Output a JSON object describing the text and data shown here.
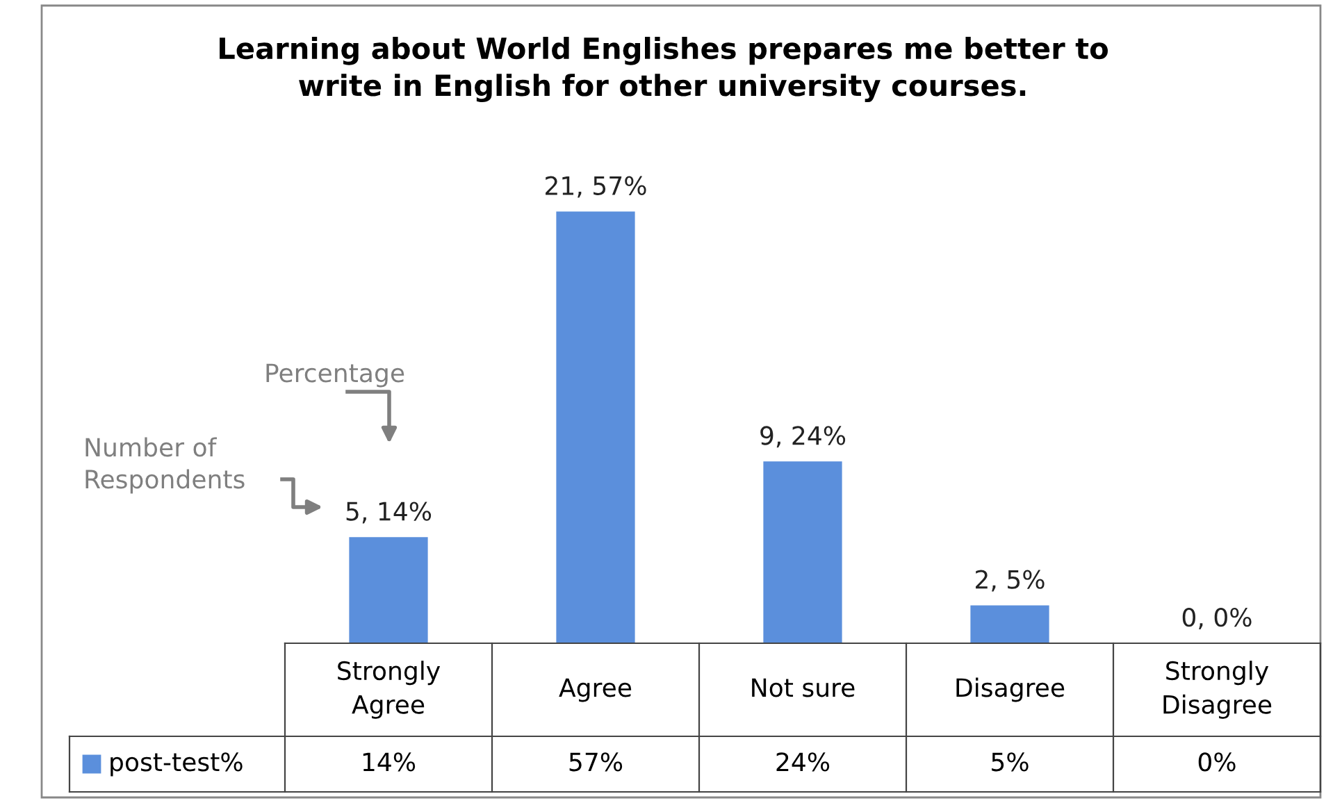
{
  "chart_data": {
    "type": "bar",
    "title": "Learning about World Englishes prepares me better to\nwrite in English for other university courses.",
    "categories": [
      "Strongly\nAgree",
      "Agree",
      "Not sure",
      "Disagree",
      "Strongly\nDisagree"
    ],
    "series": [
      {
        "name": "post-test%",
        "color": "#5b8fdc",
        "values": [
          14,
          57,
          24,
          5,
          0
        ],
        "value_labels": [
          "5, 14%",
          "21, 57%",
          "9, 24%",
          "2, 5%",
          "0, 0%"
        ]
      }
    ],
    "annotations": [
      "Number of\nRespondents",
      "Percentage",
      "14%",
      "57%",
      "24%",
      "5%",
      "0%"
    ],
    "legend": "bottom left"
  }
}
